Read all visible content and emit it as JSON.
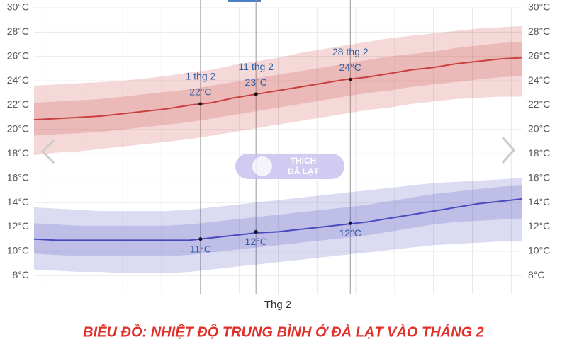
{
  "chart_data": {
    "type": "band-line",
    "title": "BIỂU ĐỒ: NHIỆT ĐỘ TRUNG BÌNH Ở ĐÀ LẠT VÀO THÁNG 2",
    "x_label": "Thg 2",
    "watermark": [
      "THÍCH",
      "ĐÀ LẠT"
    ],
    "xlim": [
      2,
      90
    ],
    "xticks": [
      4,
      11,
      18,
      25,
      32,
      39,
      46,
      53,
      60,
      67,
      74,
      81,
      88
    ],
    "ylim": [
      6.5,
      30
    ],
    "yticks": [
      {
        "value": 8,
        "label": "8°C"
      },
      {
        "value": 10,
        "label": "10°C"
      },
      {
        "value": 12,
        "label": "12°C"
      },
      {
        "value": 14,
        "label": "14°C"
      },
      {
        "value": 16,
        "label": "16°C"
      },
      {
        "value": 18,
        "label": "18°C"
      },
      {
        "value": 20,
        "label": "20°C"
      },
      {
        "value": 22,
        "label": "22°C"
      },
      {
        "value": 24,
        "label": "24°C"
      },
      {
        "value": 26,
        "label": "26°C"
      },
      {
        "value": 28,
        "label": "28°C"
      },
      {
        "value": 30,
        "label": "30°C"
      }
    ],
    "grid": true,
    "bands": [
      {
        "color": "#c8413e",
        "x": [
          2,
          6,
          10,
          14,
          18,
          22,
          26,
          30,
          34,
          38,
          42,
          46,
          50,
          54,
          58,
          62,
          66,
          70,
          74,
          78,
          82,
          86,
          90
        ],
        "mean": [
          20.8,
          20.9,
          21.0,
          21.1,
          21.3,
          21.5,
          21.7,
          22.0,
          22.2,
          22.6,
          22.9,
          23.2,
          23.5,
          23.8,
          24.1,
          24.3,
          24.6,
          24.9,
          25.1,
          25.4,
          25.6,
          25.8,
          25.9
        ],
        "p10": [
          17.9,
          18.1,
          18.2,
          18.4,
          18.6,
          18.8,
          19.0,
          19.2,
          19.5,
          19.8,
          20.1,
          20.4,
          20.7,
          21.0,
          21.3,
          21.6,
          21.8,
          22.1,
          22.3,
          22.5,
          22.6,
          22.7,
          22.7
        ],
        "p25": [
          19.5,
          19.6,
          19.7,
          19.8,
          20.0,
          20.2,
          20.4,
          20.6,
          20.9,
          21.2,
          21.5,
          21.8,
          22.1,
          22.4,
          22.7,
          23.0,
          23.2,
          23.5,
          23.7,
          23.9,
          24.1,
          24.3,
          24.4
        ],
        "p75": [
          22.2,
          22.3,
          22.4,
          22.5,
          22.7,
          22.9,
          23.1,
          23.3,
          23.6,
          23.9,
          24.2,
          24.5,
          24.8,
          25.1,
          25.4,
          25.7,
          26.0,
          26.2,
          26.4,
          26.7,
          26.9,
          27.1,
          27.2
        ],
        "p90": [
          23.6,
          23.7,
          23.8,
          23.9,
          24.0,
          24.2,
          24.4,
          24.7,
          24.9,
          25.3,
          25.6,
          25.9,
          26.3,
          26.6,
          26.9,
          27.2,
          27.5,
          27.7,
          27.9,
          28.1,
          28.3,
          28.4,
          28.5
        ]
      },
      {
        "color": "#4a4ac0",
        "x": [
          2,
          6,
          10,
          14,
          18,
          22,
          26,
          30,
          34,
          38,
          42,
          46,
          50,
          54,
          58,
          62,
          66,
          70,
          74,
          78,
          82,
          86,
          90
        ],
        "mean": [
          11.0,
          10.9,
          10.9,
          10.9,
          10.9,
          10.9,
          10.9,
          10.9,
          11.1,
          11.3,
          11.5,
          11.6,
          11.8,
          12.0,
          12.2,
          12.4,
          12.7,
          13.0,
          13.3,
          13.6,
          13.9,
          14.1,
          14.3
        ],
        "p10": [
          8.5,
          8.4,
          8.3,
          8.3,
          8.2,
          8.2,
          8.2,
          8.3,
          8.5,
          8.7,
          8.9,
          9.1,
          9.3,
          9.5,
          9.7,
          9.9,
          10.1,
          10.3,
          10.5,
          10.6,
          10.7,
          10.8,
          10.8
        ],
        "p25": [
          9.8,
          9.7,
          9.6,
          9.6,
          9.6,
          9.6,
          9.6,
          9.7,
          9.9,
          10.1,
          10.3,
          10.5,
          10.7,
          10.9,
          11.1,
          11.3,
          11.6,
          11.9,
          12.2,
          12.4,
          12.5,
          12.6,
          12.7
        ],
        "p75": [
          12.3,
          12.2,
          12.1,
          12.1,
          12.1,
          12.1,
          12.1,
          12.2,
          12.4,
          12.6,
          12.8,
          13.0,
          13.2,
          13.4,
          13.6,
          13.8,
          14.1,
          14.4,
          14.7,
          14.9,
          15.1,
          15.3,
          15.4
        ],
        "p90": [
          13.6,
          13.5,
          13.4,
          13.3,
          13.3,
          13.3,
          13.3,
          13.4,
          13.6,
          13.8,
          14.0,
          14.2,
          14.4,
          14.6,
          14.8,
          15.0,
          15.2,
          15.4,
          15.6,
          15.7,
          15.8,
          15.9,
          16.0
        ]
      }
    ],
    "annotations": [
      {
        "x": 32,
        "y": 22.1,
        "date": "1 thg 2",
        "label": "22°C",
        "position": "above"
      },
      {
        "x": 42,
        "y": 22.9,
        "date": "11 thg 2",
        "label": "23°C",
        "position": "above"
      },
      {
        "x": 59,
        "y": 24.1,
        "date": "28 thg 2",
        "label": "24°C",
        "position": "above"
      },
      {
        "x": 32,
        "y": 11.0,
        "label": "11°C",
        "position": "below"
      },
      {
        "x": 42,
        "y": 11.6,
        "label": "12°C",
        "position": "below"
      },
      {
        "x": 59,
        "y": 12.3,
        "label": "12°C",
        "position": "below"
      }
    ]
  }
}
